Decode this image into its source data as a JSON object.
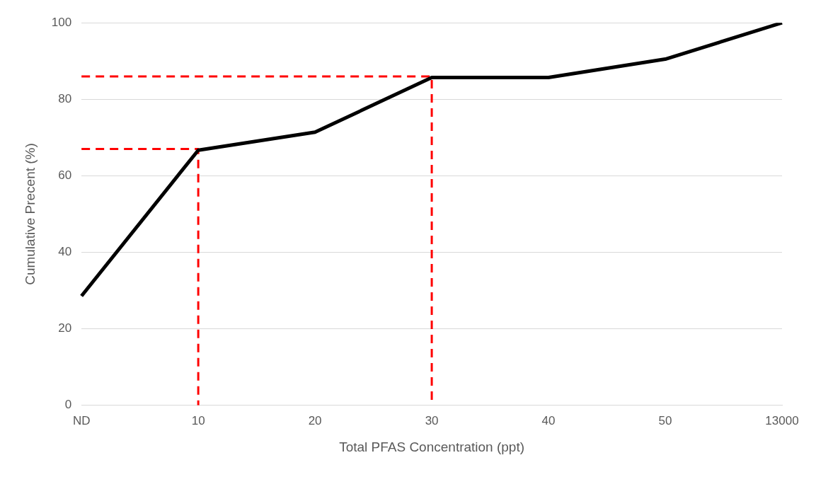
{
  "chart_data": {
    "type": "line",
    "xlabel": "Total PFAS Concentration (ppt)",
    "ylabel": "Cumulative Precent (%)",
    "categories": [
      "ND",
      "10",
      "20",
      "30",
      "40",
      "50",
      "13000"
    ],
    "series": [
      {
        "color": "#000000",
        "values": [
          28.6,
          66.7,
          71.4,
          85.7,
          85.7,
          90.5,
          100
        ]
      },
      {
        "type": "line",
        "color": "#ff0000",
        "line_style": "dashed",
        "x": [
          "ND",
          "10",
          "10"
        ],
        "values": [
          67,
          67,
          0
        ]
      },
      {
        "type": "line",
        "color": "#ff0000",
        "line_style": "dashed",
        "x": [
          "ND",
          "30",
          "30"
        ],
        "values": [
          86,
          86,
          0
        ]
      }
    ],
    "ylim": [
      0,
      100
    ],
    "yticks": [
      0,
      20,
      40,
      60,
      80,
      100
    ],
    "grid": "y",
    "marker": "none",
    "line_style": "solid"
  }
}
